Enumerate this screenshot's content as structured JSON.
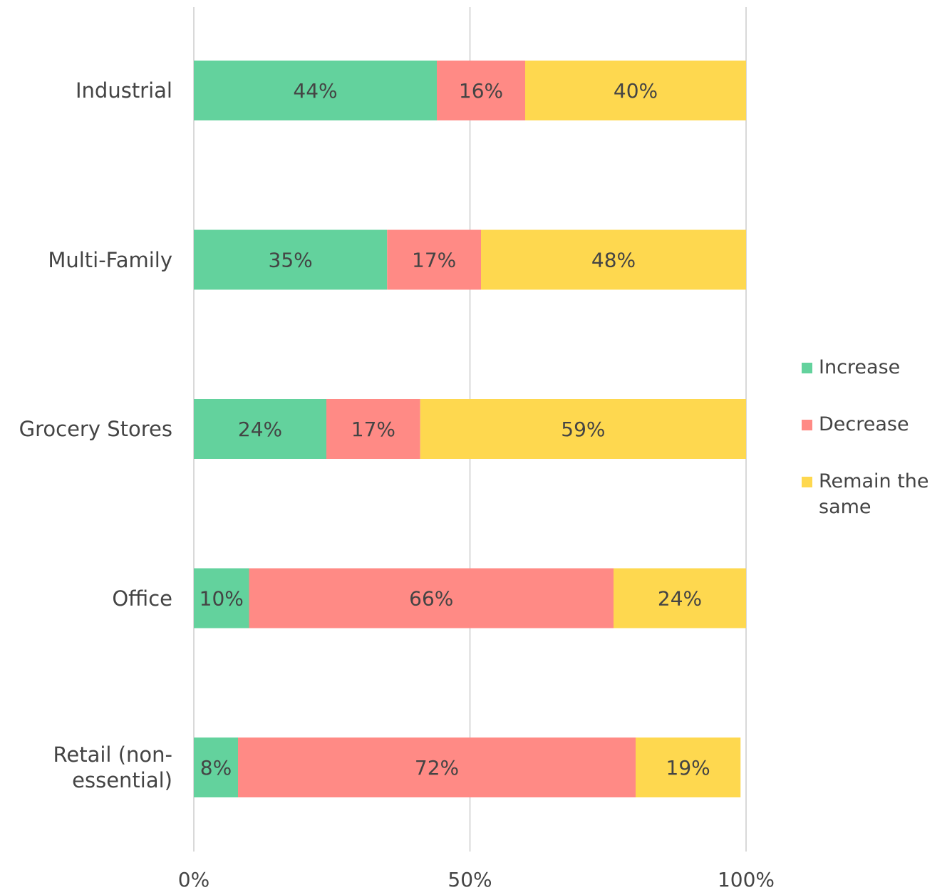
{
  "chart_data": {
    "type": "stacked-bar-horizontal",
    "categories": [
      "Industrial",
      "Multi-Family",
      "Grocery Stores",
      "Office",
      "Retail (non-essential)"
    ],
    "series": [
      {
        "name": "Increase",
        "color": "#63d29d",
        "values": [
          44,
          35,
          24,
          10,
          8
        ],
        "value_labels": [
          "44%",
          "35%",
          "24%",
          "10%",
          "8%"
        ]
      },
      {
        "name": "Decrease",
        "color": "#ff8a85",
        "values": [
          16,
          17,
          17,
          66,
          72
        ],
        "value_labels": [
          "16%",
          "17%",
          "17%",
          "66%",
          "72%"
        ]
      },
      {
        "name": "Remain the same",
        "color": "#fed84f",
        "values": [
          40,
          48,
          59,
          24,
          19
        ],
        "value_labels": [
          "40%",
          "48%",
          "59%",
          "24%",
          "19%"
        ]
      }
    ],
    "xlim": [
      0,
      100
    ],
    "xticks": [
      {
        "value": 0,
        "label": "0%"
      },
      {
        "value": 50,
        "label": "50%"
      },
      {
        "value": 100,
        "label": "100%"
      }
    ],
    "grid": true,
    "legend": "right"
  }
}
